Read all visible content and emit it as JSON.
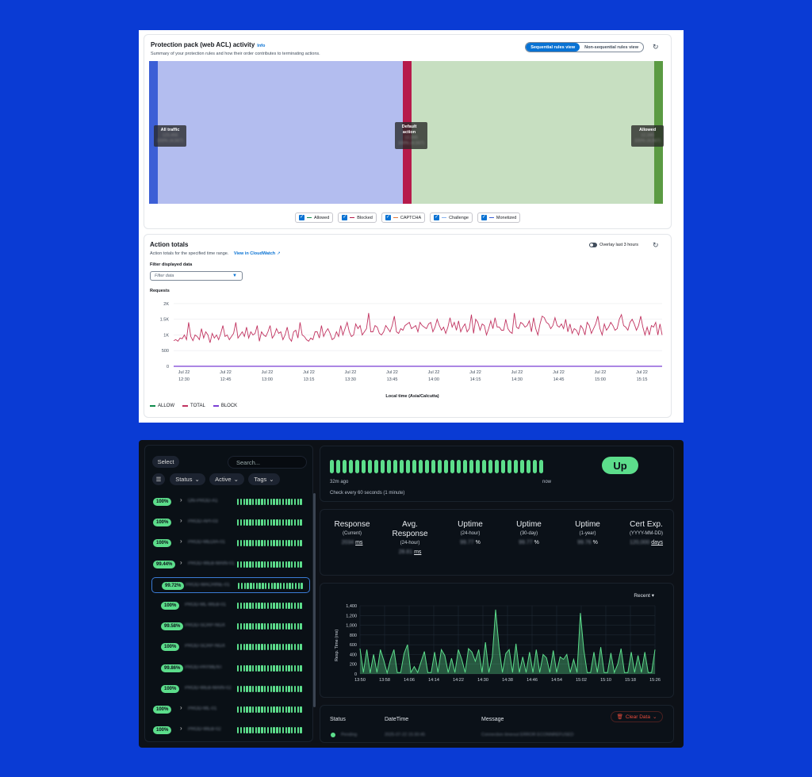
{
  "aws": {
    "activity": {
      "title": "Protection pack (web ACL) activity",
      "info": "Info",
      "subtitle": "Summary of your protection rules and how their order contributes to terminating actions.",
      "view_toggle": {
        "active": "Sequential rules view",
        "inactive": "Non-sequential rules view"
      },
      "nodes": [
        {
          "label": "All traffic",
          "count": "123,456",
          "pct": "100% (4,567)"
        },
        {
          "label": "Default action",
          "count": "12,345",
          "pct": "100% (4,567)"
        },
        {
          "label": "Allowed",
          "count": "12,345",
          "pct": "100% (4,567)"
        }
      ],
      "legend": [
        "Allowed",
        "Blocked",
        "CAPTCHA",
        "Challenge",
        "Monetized"
      ],
      "colors": {
        "blocked": "#b61b4b",
        "allowed_flow": "#c7dfc1",
        "all_flow": "#b3bdef",
        "all_node": "#3c5fd6",
        "allowed_node": "#5b9b43"
      }
    },
    "totals": {
      "title": "Action totals",
      "subtitle": "Action totals for the specified time range.",
      "link": "View in CloudWatch",
      "overlay": "Overlay last 3 hours",
      "filter_label": "Filter displayed data",
      "filter_placeholder": "Filter data",
      "legend": [
        {
          "name": "ALLOW",
          "color": "#0f8a4b"
        },
        {
          "name": "TOTAL",
          "color": "#c13360"
        },
        {
          "name": "BLOCK",
          "color": "#7b3fd4"
        }
      ]
    }
  },
  "chart_data": [
    {
      "type": "line",
      "ylabel": "Requests",
      "xlabel": "Local time (Asia/Calcutta)",
      "ylim": [
        0,
        2200
      ],
      "y_ticks": [
        "0",
        "500",
        "1K",
        "1.5K",
        "2K"
      ],
      "x_ticks": [
        [
          "Jul 22",
          "12:30"
        ],
        [
          "Jul 22",
          "12:45"
        ],
        [
          "Jul 22",
          "13:00"
        ],
        [
          "Jul 22",
          "13:15"
        ],
        [
          "Jul 22",
          "13:30"
        ],
        [
          "Jul 22",
          "13:45"
        ],
        [
          "Jul 22",
          "14:00"
        ],
        [
          "Jul 22",
          "14:15"
        ],
        [
          "Jul 22",
          "14:30"
        ],
        [
          "Jul 22",
          "14:45"
        ],
        [
          "Jul 22",
          "15:00"
        ],
        [
          "Jul 22",
          "15:15"
        ]
      ],
      "series": [
        {
          "name": "TOTAL",
          "values": [
            820,
            850,
            800,
            900,
            880,
            1000,
            850,
            1400,
            950,
            820,
            1000,
            950,
            850,
            1200,
            900,
            1100,
            1000,
            750,
            1050,
            900,
            1000,
            850,
            1050,
            1300,
            950,
            1000,
            850,
            950,
            1050,
            1400,
            900,
            1000,
            1100,
            950,
            1250,
            900,
            1100,
            1000,
            1050,
            1300,
            800,
            1100,
            1000,
            950,
            1100,
            1300,
            900,
            1000,
            1200,
            1050,
            1100,
            850,
            1000,
            1250,
            900,
            800,
            1100,
            1150,
            900,
            1400,
            1000,
            950,
            850,
            800,
            900,
            850,
            1100,
            1100,
            900,
            1300,
            950,
            1100,
            1200,
            1050,
            850,
            900,
            1100,
            950,
            1300,
            1000,
            1200,
            1400,
            1100,
            950,
            1000,
            1350,
            1200,
            1300,
            1000,
            1100,
            1200,
            1700,
            1100,
            1100,
            1300,
            1250,
            1050,
            1000,
            1100,
            1300,
            1200,
            1100,
            1300,
            1600,
            1100,
            1050,
            1200,
            1150,
            1300,
            1350,
            1400,
            1200,
            1250,
            1300,
            1100,
            1400,
            1300,
            1250,
            1200,
            1350,
            1400,
            1100,
            1250,
            1500,
            1300,
            1150,
            1250,
            1050,
            1250,
            1550,
            1250,
            1400,
            1150,
            1450,
            1100,
            1250,
            1350,
            1100,
            1200,
            1650,
            1050,
            1500,
            1400,
            1150,
            1350,
            1300,
            1000,
            1200,
            1450,
            1200,
            1550,
            1250,
            1250,
            1150,
            1150,
            1500,
            1200,
            1100,
            1050,
            1700,
            1250,
            1200,
            1400,
            1350,
            1250,
            1300,
            1450,
            1100,
            1550,
            1200,
            1000,
            1350,
            1600,
            1550,
            1400,
            1350,
            1200,
            1300,
            1550,
            1300,
            1250,
            1350,
            1200,
            1500,
            1100,
            1350,
            1050,
            1200,
            1150,
            1000,
            1300,
            1200,
            1000,
            1400,
            1300,
            1050,
            1200,
            1350,
            1600,
            1200,
            1000,
            1350,
            1150,
            1250,
            1400,
            1300,
            1150,
            1200,
            1500,
            1650,
            1300,
            1250,
            1150,
            1400,
            1500,
            1350,
            1150,
            1300,
            1600,
            1250,
            1000,
            1250,
            1000,
            1300,
            1250,
            1400,
            1000,
            1350,
            1000
          ]
        },
        {
          "name": "BLOCK",
          "values": [
            0
          ]
        }
      ]
    },
    {
      "type": "area",
      "ylabel": "Resp. Time (ms)",
      "ylim": [
        0,
        1400
      ],
      "y_ticks": [
        "0",
        "200",
        "400",
        "600",
        "800",
        "1,000",
        "1,200",
        "1,400"
      ],
      "x_ticks": [
        "13:50",
        "13:58",
        "14:06",
        "14:14",
        "14:22",
        "14:30",
        "14:38",
        "14:46",
        "14:54",
        "15:02",
        "15:10",
        "15:18",
        "15:26"
      ],
      "series": [
        {
          "name": "",
          "values": [
            520,
            30,
            500,
            20,
            400,
            30,
            500,
            280,
            20,
            300,
            500,
            30,
            30,
            420,
            600,
            30,
            150,
            30,
            250,
            460,
            30,
            30,
            450,
            30,
            500,
            380,
            30,
            320,
            30,
            500,
            300,
            30,
            520,
            450,
            260,
            500,
            30,
            650,
            30,
            350,
            1320,
            550,
            30,
            420,
            500,
            30,
            620,
            30,
            350,
            30,
            450,
            30,
            500,
            30,
            400,
            330,
            30,
            480,
            30,
            350,
            300,
            400,
            30,
            300,
            30,
            1250,
            500,
            30,
            30,
            450,
            30,
            550,
            30,
            30,
            430,
            30,
            200,
            520,
            30,
            30,
            450,
            30,
            380,
            30,
            450,
            30,
            30,
            500
          ]
        }
      ]
    }
  ],
  "kuma": {
    "select": "Select",
    "search_placeholder": "Search...",
    "filters": [
      "Status",
      "Active",
      "Tags"
    ],
    "monitors": [
      {
        "pct": "100%",
        "name": "ON-PROD-A1",
        "chev": "›"
      },
      {
        "pct": "100%",
        "name": "PROD-API-03",
        "chev": "›"
      },
      {
        "pct": "100%",
        "name": "PROD-MEDIA-01",
        "chev": "›"
      },
      {
        "pct": "99.44%",
        "name": "PROD-WEB-MAIN-01",
        "chev": "›"
      },
      {
        "pct": "99.72%",
        "name": "PROD-MACHINE-01",
        "chev": ""
      },
      {
        "pct": "100%",
        "name": "PROD-ML-WEB-01",
        "chev": ""
      },
      {
        "pct": "99.58%",
        "name": "PROD-SCRP-NGX",
        "chev": ""
      },
      {
        "pct": "100%",
        "name": "PROD-SCRP-NGX",
        "chev": ""
      },
      {
        "pct": "99.86%",
        "name": "PROD-PAYMENT",
        "chev": ""
      },
      {
        "pct": "100%",
        "name": "PROD-WEB-MAIN-02",
        "chev": ""
      },
      {
        "pct": "100%",
        "name": "PROD-ML-01",
        "chev": "›"
      },
      {
        "pct": "100%",
        "name": "PROD-WEB-02",
        "chev": "›"
      }
    ],
    "heartbeat": {
      "left": "32m ago",
      "right": "now",
      "interval": "Check every 60 seconds (1 minute)",
      "status": "Up"
    },
    "stats": [
      {
        "h1": "Response",
        "h2": "",
        "sub": "(Current)",
        "val": "2034",
        "unit": "ms"
      },
      {
        "h1": "Avg.",
        "h2": "Response",
        "sub": "(24-hour)",
        "val": "28.81",
        "unit": "ms"
      },
      {
        "h1": "Uptime",
        "h2": "",
        "sub": "(24-hour)",
        "val": "99.77",
        "unit": "%"
      },
      {
        "h1": "Uptime",
        "h2": "",
        "sub": "(30-day)",
        "val": "99.77",
        "unit": "%"
      },
      {
        "h1": "Uptime",
        "h2": "",
        "sub": "(1-year)",
        "val": "99.76",
        "unit": "%"
      },
      {
        "h1": "Cert Exp.",
        "h2": "",
        "sub": "(YYYY-MM-DD)",
        "val": "120,000",
        "unit": "days"
      }
    ],
    "recent": "Recent",
    "table": {
      "headers": [
        "Status",
        "DateTime",
        "Message"
      ],
      "clear": "Clear Data",
      "row": {
        "status": "Pending",
        "datetime": "2025-07-22 15:30:45",
        "message": "Connection timeout ERROR ECONNREFUSED"
      }
    }
  }
}
